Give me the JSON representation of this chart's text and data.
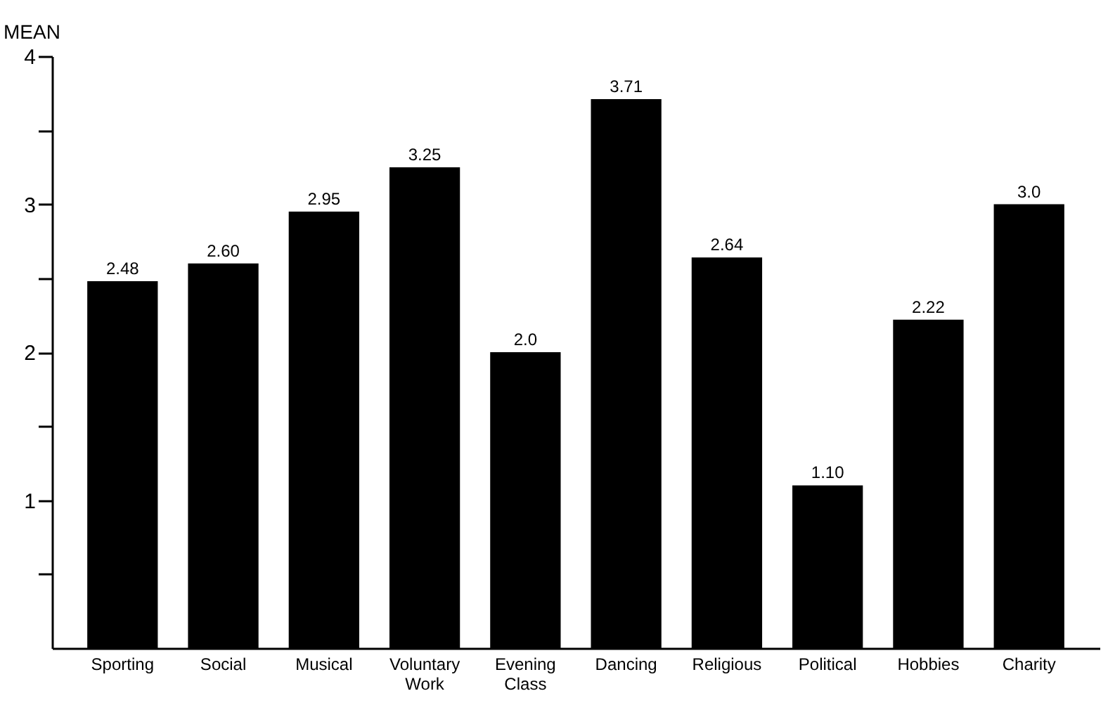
{
  "chart_data": {
    "type": "bar",
    "ylabel": "MEAN",
    "categories": [
      "Sporting",
      "Social",
      "Musical",
      "Voluntary Work",
      "Evening Class",
      "Dancing",
      "Religious",
      "Political",
      "Hobbies",
      "Charity"
    ],
    "values": [
      2.48,
      2.6,
      2.95,
      3.25,
      2.0,
      3.71,
      2.64,
      1.1,
      2.22,
      3.0
    ],
    "value_labels": [
      "2.48",
      "2.60",
      "2.95",
      "3.25",
      "2.0",
      "3.71",
      "2.64",
      "1.10",
      "2.22",
      "3.0"
    ],
    "color": "#000000",
    "ylim": [
      0,
      4
    ],
    "yticks": [
      {
        "value": 0.5,
        "label": null
      },
      1,
      {
        "value": 1.5,
        "label": null
      },
      2,
      {
        "value": 2.5,
        "label": null
      },
      3,
      {
        "value": 3.5,
        "label": null
      },
      4
    ]
  }
}
